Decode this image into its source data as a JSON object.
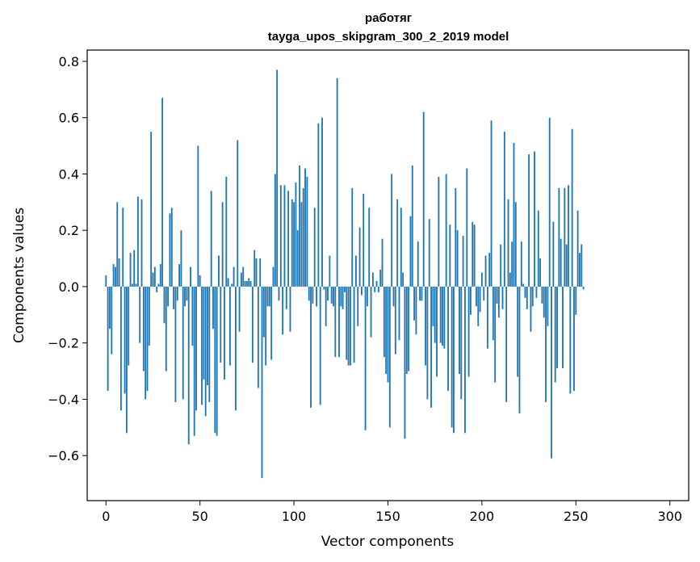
{
  "chart_data": {
    "type": "bar",
    "title_line1": "работяг",
    "title_line2": "tayga_upos_skipgram_300_2_2019 model",
    "xlabel": "Vector components",
    "ylabel": "Components values",
    "xlim": [
      -10,
      310
    ],
    "ylim": [
      -0.76,
      0.84
    ],
    "xticks": [
      0,
      50,
      100,
      150,
      200,
      250,
      300
    ],
    "xtick_labels": [
      "0",
      "50",
      "100",
      "150",
      "200",
      "250",
      "300"
    ],
    "yticks": [
      -0.6,
      -0.4,
      -0.2,
      0.0,
      0.2,
      0.4,
      0.6,
      0.8
    ],
    "ytick_labels": [
      "−0.6",
      "−0.4",
      "−0.2",
      "0.0",
      "0.2",
      "0.4",
      "0.6",
      "0.8"
    ],
    "bar_color": "#1f77b4",
    "grid": false,
    "values": [
      0.04,
      -0.37,
      -0.15,
      -0.24,
      0.08,
      0.07,
      0.3,
      0.1,
      -0.44,
      0.28,
      -0.38,
      -0.52,
      -0.28,
      0.12,
      0.01,
      0.13,
      0.01,
      0.32,
      -0.2,
      0.31,
      -0.3,
      -0.4,
      -0.37,
      -0.21,
      0.55,
      0.05,
      0.07,
      -0.02,
      0.01,
      0.08,
      0.67,
      -0.13,
      -0.3,
      -0.07,
      0.26,
      0.28,
      -0.08,
      -0.41,
      -0.05,
      0.08,
      0.2,
      -0.4,
      -0.07,
      -0.05,
      -0.56,
      0.07,
      -0.21,
      -0.53,
      -0.44,
      0.5,
      0.04,
      -0.42,
      -0.33,
      -0.46,
      -0.35,
      -0.41,
      0.34,
      -0.15,
      -0.52,
      -0.53,
      0.11,
      -0.27,
      0.3,
      -0.33,
      0.39,
      0.03,
      -0.28,
      0.01,
      0.07,
      -0.44,
      0.52,
      -0.16,
      0.05,
      0.07,
      0.02,
      0.02,
      0.03,
      0.02,
      -0.27,
      0.13,
      0.1,
      -0.36,
      0.1,
      -0.68,
      -0.18,
      -0.28,
      -0.07,
      -0.07,
      -0.26,
      0.07,
      0.4,
      0.77,
      -0.05,
      0.36,
      -0.17,
      0.36,
      -0.08,
      0.34,
      -0.16,
      0.31,
      0.3,
      0.37,
      0.2,
      0.43,
      0.3,
      0.35,
      0.42,
      0.39,
      -0.05,
      -0.43,
      -0.06,
      0.28,
      -0.07,
      0.58,
      -0.42,
      0.6,
      -0.01,
      -0.14,
      -0.05,
      0.11,
      -0.06,
      -0.07,
      -0.25,
      0.74,
      -0.25,
      -0.07,
      -0.08,
      -0.02,
      -0.26,
      -0.28,
      -0.28,
      0.35,
      -0.27,
      0.11,
      -0.14,
      0.21,
      -0.03,
      0.33,
      -0.51,
      -0.07,
      0.28,
      -0.18,
      0.05,
      -0.02,
      0.02,
      -0.02,
      0.06,
      0.17,
      -0.25,
      -0.31,
      -0.34,
      -0.5,
      0.4,
      -0.07,
      -0.24,
      0.31,
      -0.19,
      0.28,
      0.05,
      -0.54,
      -0.31,
      -0.3,
      0.25,
      0.43,
      -0.12,
      -0.17,
      0.16,
      -0.05,
      -0.05,
      0.62,
      -0.28,
      -0.4,
      0.24,
      -0.43,
      -0.14,
      -0.2,
      -0.32,
      0.39,
      -0.2,
      -0.21,
      -0.22,
      0.4,
      -0.37,
      0.22,
      -0.5,
      -0.52,
      0.35,
      0.2,
      -0.31,
      -0.4,
      0.18,
      -0.52,
      0.42,
      -0.32,
      -0.1,
      0.23,
      0.22,
      -0.07,
      -0.14,
      -0.09,
      0.05,
      -0.05,
      0.11,
      -0.22,
      0.12,
      0.59,
      -0.19,
      -0.34,
      -0.06,
      -0.11,
      0.15,
      -0.08,
      0.55,
      -0.41,
      0.31,
      0.05,
      0.16,
      0.51,
      0.3,
      -0.32,
      -0.45,
      0.16,
      0.01,
      -0.04,
      -0.08,
      0.47,
      -0.16,
      -0.07,
      0.48,
      -0.04,
      0.27,
      0.1,
      -0.06,
      -0.11,
      -0.41,
      -0.14,
      0.6,
      -0.61,
      0.23,
      -0.34,
      -0.29,
      0.35,
      0.17,
      -0.29,
      0.35,
      0.15,
      0.36,
      -0.38,
      0.56,
      -0.37,
      -0.1,
      0.27,
      0.12,
      0.15,
      -0.01
    ]
  }
}
